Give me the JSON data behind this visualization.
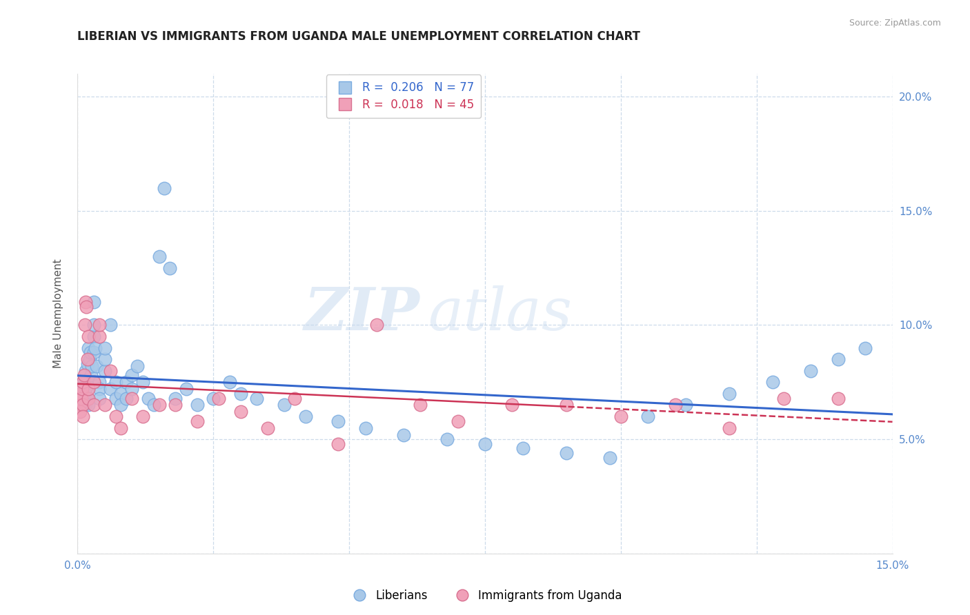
{
  "title": "LIBERIAN VS IMMIGRANTS FROM UGANDA MALE UNEMPLOYMENT CORRELATION CHART",
  "source": "Source: ZipAtlas.com",
  "ylabel": "Male Unemployment",
  "xlim": [
    0.0,
    0.15
  ],
  "ylim": [
    0.0,
    0.21
  ],
  "R_liberian": 0.206,
  "N_liberian": 77,
  "R_uganda": 0.018,
  "N_uganda": 45,
  "color_liberian": "#a8c8e8",
  "color_liberian_edge": "#7aabe0",
  "color_uganda": "#f0a0b8",
  "color_uganda_edge": "#d87090",
  "line_color_liberian": "#3366cc",
  "line_color_uganda": "#cc3355",
  "legend_labels": [
    "Liberians",
    "Immigrants from Uganda"
  ],
  "watermark_zip": "ZIP",
  "watermark_atlas": "atlas",
  "tick_color": "#5588cc",
  "liberian_x": [
    0.0003,
    0.0004,
    0.0005,
    0.0006,
    0.0007,
    0.0008,
    0.0009,
    0.001,
    0.001,
    0.0012,
    0.0013,
    0.0014,
    0.0015,
    0.0015,
    0.0016,
    0.0017,
    0.0018,
    0.002,
    0.002,
    0.002,
    0.0022,
    0.0023,
    0.0025,
    0.0026,
    0.003,
    0.003,
    0.003,
    0.003,
    0.0032,
    0.0035,
    0.004,
    0.004,
    0.004,
    0.005,
    0.005,
    0.005,
    0.006,
    0.006,
    0.007,
    0.007,
    0.008,
    0.008,
    0.009,
    0.009,
    0.01,
    0.01,
    0.011,
    0.012,
    0.013,
    0.014,
    0.015,
    0.016,
    0.017,
    0.018,
    0.02,
    0.022,
    0.025,
    0.028,
    0.03,
    0.033,
    0.038,
    0.042,
    0.048,
    0.053,
    0.06,
    0.068,
    0.075,
    0.082,
    0.09,
    0.098,
    0.105,
    0.112,
    0.12,
    0.128,
    0.135,
    0.14,
    0.145
  ],
  "liberian_y": [
    0.066,
    0.068,
    0.07,
    0.065,
    0.067,
    0.071,
    0.069,
    0.073,
    0.068,
    0.075,
    0.065,
    0.07,
    0.072,
    0.08,
    0.066,
    0.076,
    0.083,
    0.068,
    0.065,
    0.09,
    0.085,
    0.088,
    0.078,
    0.082,
    0.095,
    0.088,
    0.1,
    0.11,
    0.09,
    0.082,
    0.075,
    0.072,
    0.068,
    0.08,
    0.085,
    0.09,
    0.072,
    0.1,
    0.075,
    0.068,
    0.07,
    0.065,
    0.075,
    0.068,
    0.072,
    0.078,
    0.082,
    0.075,
    0.068,
    0.065,
    0.13,
    0.16,
    0.125,
    0.068,
    0.072,
    0.065,
    0.068,
    0.075,
    0.07,
    0.068,
    0.065,
    0.06,
    0.058,
    0.055,
    0.052,
    0.05,
    0.048,
    0.046,
    0.044,
    0.042,
    0.06,
    0.065,
    0.07,
    0.075,
    0.08,
    0.085,
    0.09
  ],
  "uganda_x": [
    0.0003,
    0.0004,
    0.0005,
    0.0006,
    0.0007,
    0.0008,
    0.0009,
    0.001,
    0.001,
    0.0012,
    0.0013,
    0.0015,
    0.0016,
    0.0018,
    0.002,
    0.002,
    0.002,
    0.003,
    0.003,
    0.004,
    0.004,
    0.005,
    0.006,
    0.007,
    0.008,
    0.01,
    0.012,
    0.015,
    0.018,
    0.022,
    0.026,
    0.03,
    0.035,
    0.04,
    0.048,
    0.055,
    0.063,
    0.07,
    0.08,
    0.09,
    0.1,
    0.11,
    0.12,
    0.13,
    0.14
  ],
  "uganda_y": [
    0.068,
    0.065,
    0.062,
    0.07,
    0.068,
    0.072,
    0.075,
    0.065,
    0.06,
    0.078,
    0.1,
    0.11,
    0.108,
    0.085,
    0.095,
    0.068,
    0.072,
    0.075,
    0.065,
    0.095,
    0.1,
    0.065,
    0.08,
    0.06,
    0.055,
    0.068,
    0.06,
    0.065,
    0.065,
    0.058,
    0.068,
    0.062,
    0.055,
    0.068,
    0.048,
    0.1,
    0.065,
    0.058,
    0.065,
    0.065,
    0.06,
    0.065,
    0.055,
    0.068,
    0.068
  ]
}
